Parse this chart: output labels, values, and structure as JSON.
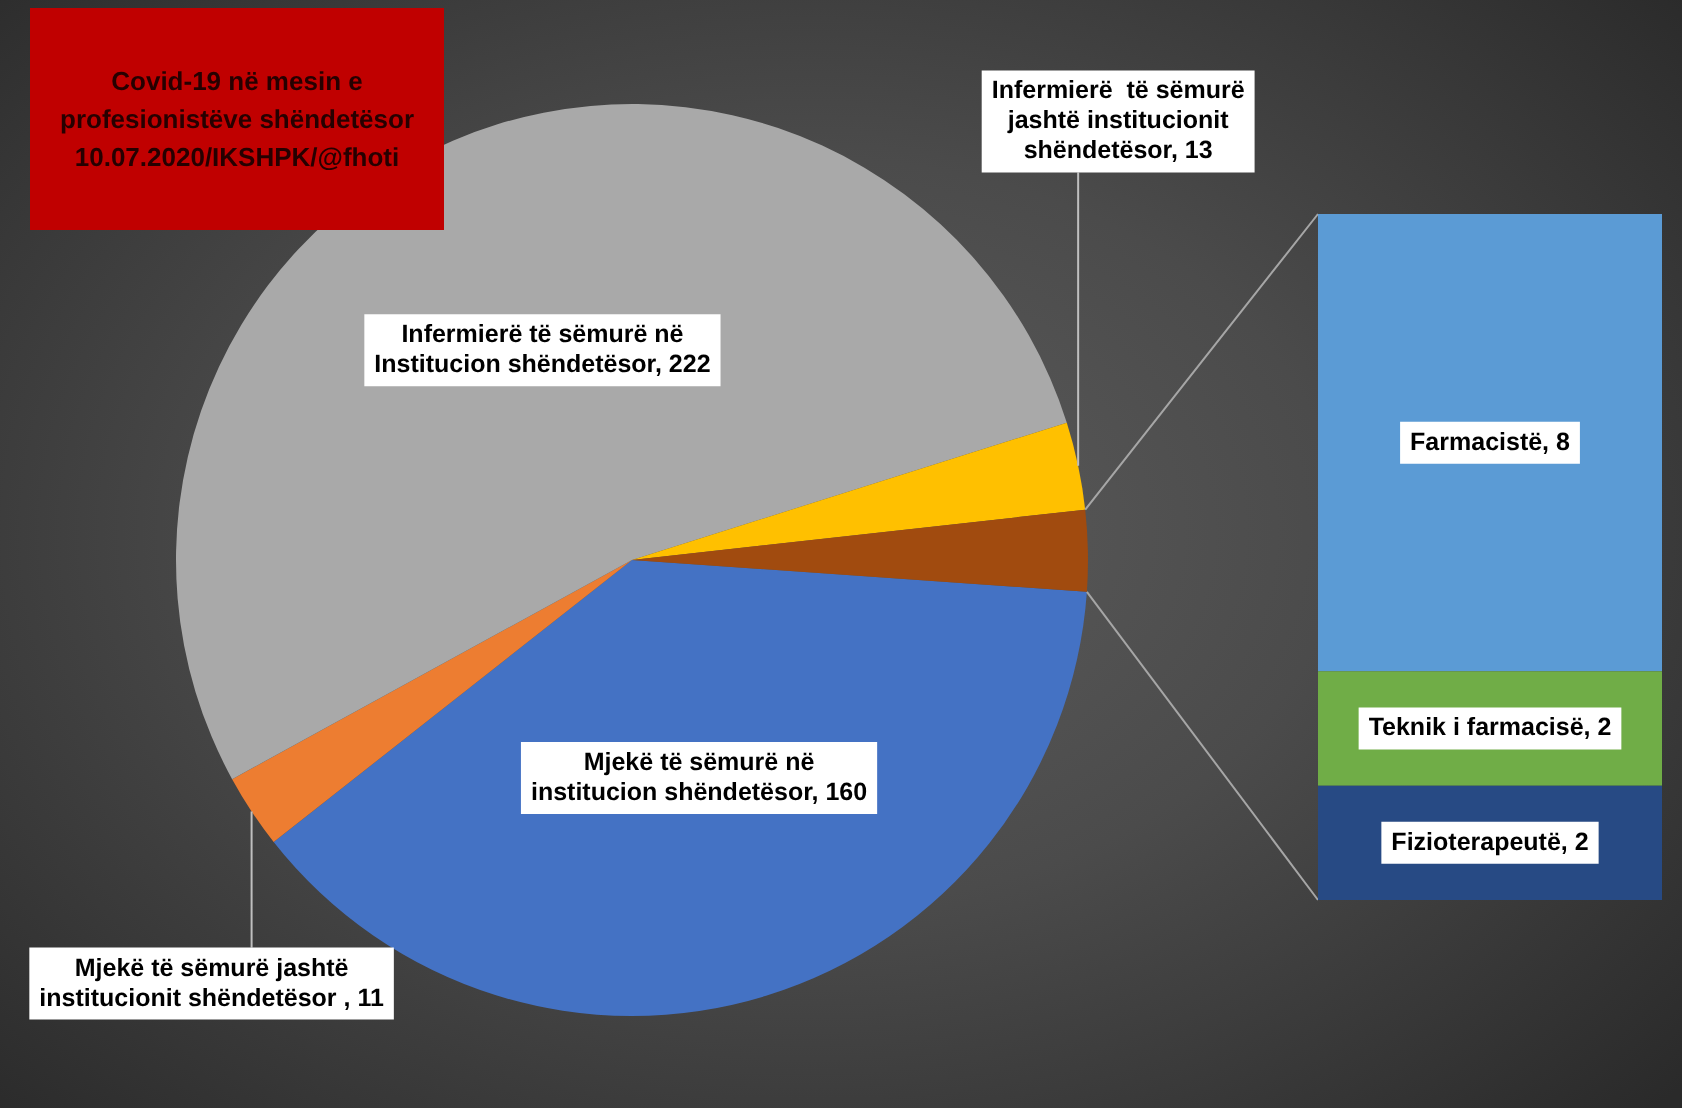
{
  "chart_data": [
    {
      "type": "pie",
      "title": "Covid-19 në mesin e profesionistëve shëndetësor 10.07.2020/IKSHPK/@fhoti",
      "categories": [
        "Mjekë të sëmurë në institucion shëndetësor",
        "Mjekë të sëmurë jashtë institucionit shëndetësor ",
        "Infermierë të sëmurë në Institucion shëndetësor",
        "Infermierë  të sëmurë jashtë institucionit shëndetësor",
        null
      ],
      "values": [
        160,
        11,
        222,
        13,
        12
      ],
      "value_labels": [
        "160",
        "11",
        "222",
        "13",
        null
      ],
      "colors": [
        "#4472c4",
        "#ed7d31",
        "#a9a9a9",
        "#ffc000",
        "#a14b0f"
      ]
    },
    {
      "type": "bar",
      "stacked": true,
      "tick_labels": false,
      "data_labels": true,
      "categories": [
        null
      ],
      "series": [
        {
          "name": "Fizioterapeutë,",
          "color": "#274a84",
          "values": [
            2
          ]
        },
        {
          "name": "Teknik i farmacisë,",
          "color": "#70ad47",
          "values": [
            2
          ]
        },
        {
          "name": "Farmacistë,",
          "color": "#5b9bd5",
          "values": [
            8
          ]
        }
      ]
    }
  ]
}
